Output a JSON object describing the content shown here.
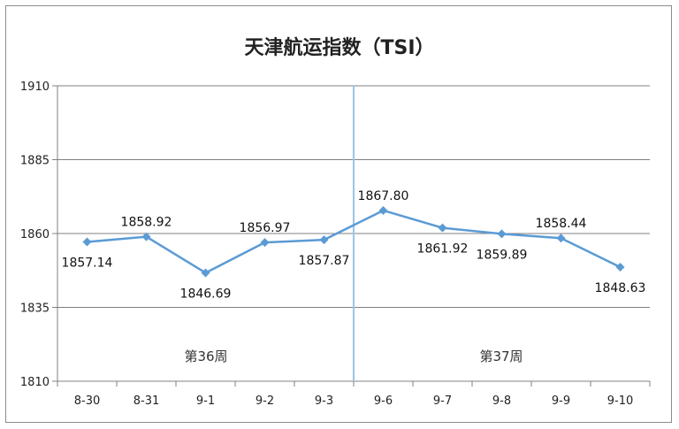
{
  "chart_data": {
    "type": "line",
    "title": "天津航运指数（TSI）",
    "categories": [
      "8-30",
      "8-31",
      "9-1",
      "9-2",
      "9-3",
      "9-6",
      "9-7",
      "9-8",
      "9-9",
      "9-10"
    ],
    "series": [
      {
        "values": [
          1857.14,
          1858.92,
          1846.69,
          1856.97,
          1857.87,
          1867.8,
          1861.92,
          1859.89,
          1858.44,
          1848.63
        ],
        "labels": [
          "1857.14",
          "1858.92",
          "1846.69",
          "1856.97",
          "1857.87",
          "1867.80",
          "1861.92",
          "1859.89",
          "1858.44",
          "1848.63"
        ],
        "label_positions": [
          "below",
          "above",
          "below",
          "above",
          "below",
          "above",
          "below",
          "below",
          "above",
          "below"
        ]
      }
    ],
    "ylim": [
      1810,
      1910
    ],
    "yticks": [
      1810,
      1835,
      1860,
      1885,
      1910
    ],
    "grid": true,
    "week_divider_after": "9-3",
    "annotations": [
      "第36周",
      "第37周"
    ],
    "colors": {
      "line": "#5b9bd5",
      "marker": "#5b9bd5",
      "divider": "#9dc3e6",
      "grid": "#808080"
    }
  }
}
